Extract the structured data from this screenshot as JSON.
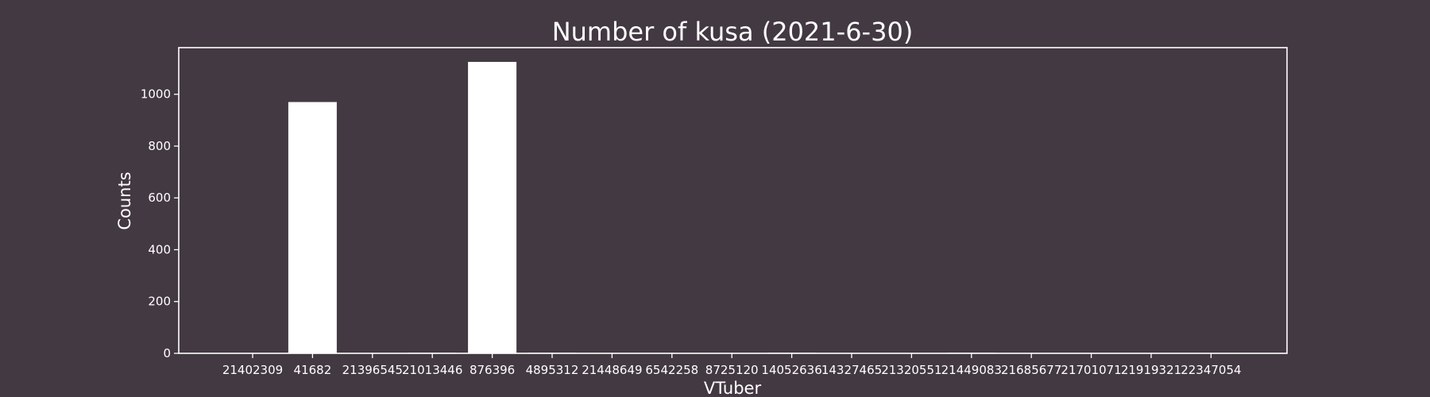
{
  "colors": {
    "background": "#433942",
    "foreground": "#ffffff",
    "bar": "#ffffff"
  },
  "chart_data": {
    "type": "bar",
    "title": "Number of kusa (2021-6-30)",
    "xlabel": "VTuber",
    "ylabel": "Counts",
    "categories": [
      "21402309",
      "41682",
      "21396545",
      "21013446",
      "876396",
      "4895312",
      "21448649",
      "6542258",
      "8725120",
      "14052636",
      "14327465",
      "21320551",
      "21449083",
      "21685677",
      "21701071",
      "21919321",
      "22347054"
    ],
    "values": [
      0,
      970,
      0,
      2,
      1125,
      2,
      0,
      0,
      0,
      2,
      0,
      0,
      2,
      0,
      0,
      0,
      0
    ],
    "yticks": [
      0,
      200,
      400,
      600,
      800,
      1000
    ],
    "ylim": [
      0,
      1180
    ],
    "grid": false,
    "legend": false
  }
}
